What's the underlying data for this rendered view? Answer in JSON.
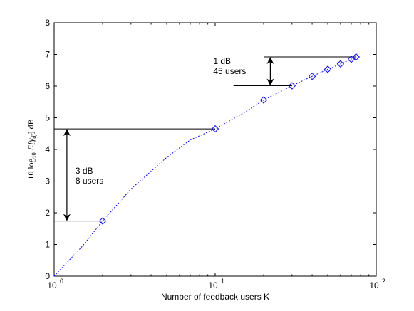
{
  "chart_data": {
    "type": "scatter",
    "xlabel": "Number of feedback users K",
    "ylabel": {
      "prefix": "10 log",
      "subscript": "10",
      "body": " E[γ",
      "body_sub": "df",
      "suffix": "] dB"
    },
    "x_scale": "log",
    "xlim": [
      1,
      100
    ],
    "ylim": [
      0,
      8
    ],
    "x_ticks": [
      {
        "value": 1,
        "base": "10",
        "exp": "0"
      },
      {
        "value": 10,
        "base": "10",
        "exp": "1"
      },
      {
        "value": 100,
        "base": "10",
        "exp": "2"
      }
    ],
    "y_ticks": [
      "0",
      "1",
      "2",
      "3",
      "4",
      "5",
      "6",
      "7",
      "8"
    ],
    "grid": false,
    "series": [
      {
        "marker": "diamond",
        "color": "#0000ff",
        "x": [
          2,
          10,
          20,
          30,
          40,
          50,
          60,
          70,
          75
        ],
        "y": [
          1.74,
          4.65,
          5.56,
          6.01,
          6.31,
          6.53,
          6.7,
          6.85,
          6.92
        ]
      }
    ],
    "fit_curve": {
      "style": "dotted",
      "color": "#0000ff",
      "x": [
        1,
        1.5,
        2,
        3,
        5,
        7,
        10,
        15,
        20,
        30,
        40,
        50,
        60,
        70,
        75
      ],
      "y": [
        0,
        0.95,
        1.74,
        2.75,
        3.75,
        4.3,
        4.65,
        5.15,
        5.56,
        6.01,
        6.31,
        6.53,
        6.7,
        6.85,
        6.92
      ]
    },
    "annotations": [
      {
        "lines": [
          "3 dB",
          "8 users"
        ],
        "arrow_x": 1.2,
        "y_from": 1.74,
        "y_to": 4.65,
        "ref_lines": [
          {
            "x_from": 1,
            "x_to": 2,
            "y": 1.74
          },
          {
            "x_from": 1,
            "x_to": 10,
            "y": 4.65
          }
        ]
      },
      {
        "lines": [
          "1 dB",
          "45 users"
        ],
        "arrow_x": 22,
        "y_from": 6.01,
        "y_to": 6.92,
        "ref_lines": [
          {
            "x_from": 13,
            "x_to": 30,
            "y": 6.01
          },
          {
            "x_from": 20,
            "x_to": 75,
            "y": 6.92
          }
        ]
      }
    ]
  }
}
